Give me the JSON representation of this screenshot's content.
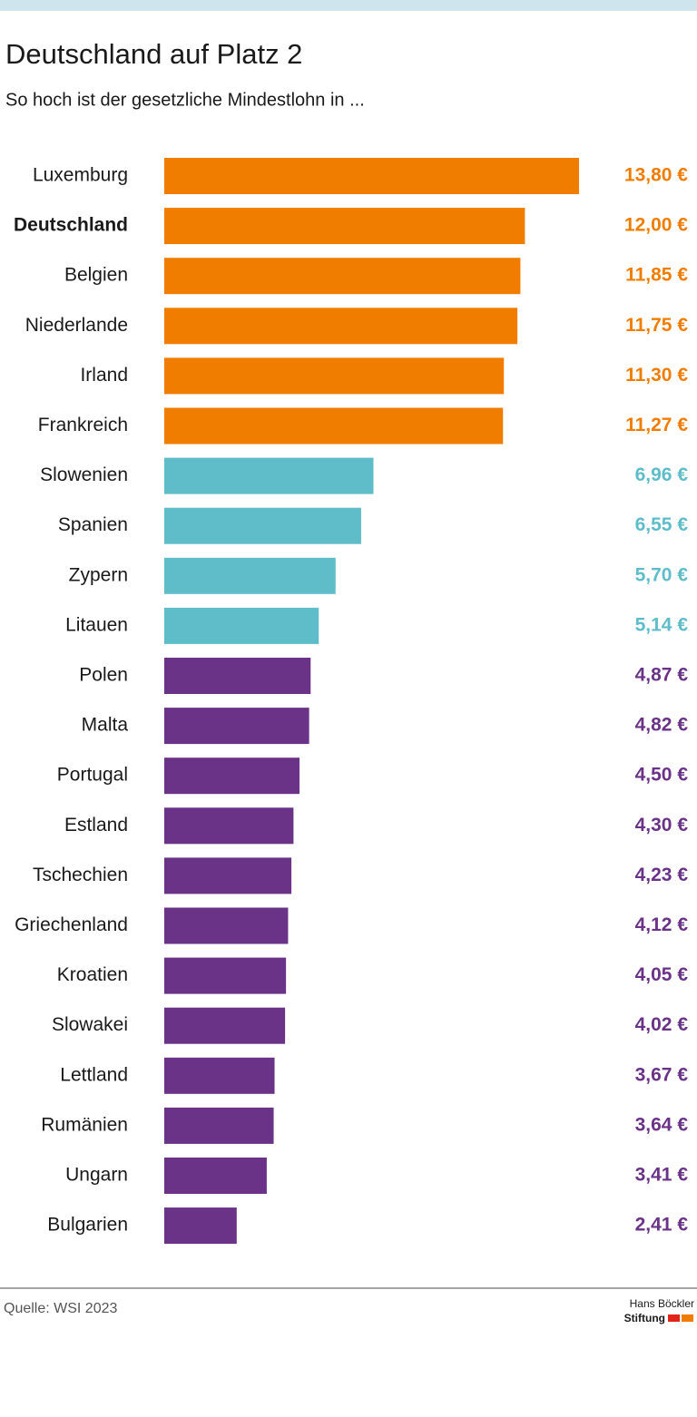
{
  "chart_data": {
    "type": "bar",
    "orientation": "horizontal",
    "title": "Deutschland auf Platz 2",
    "subtitle": "So hoch ist der gesetzliche Mindestlohn in ...",
    "categories": [
      "Luxemburg",
      "Deutschland",
      "Belgien",
      "Niederlande",
      "Irland",
      "Frankreich",
      "Slowenien",
      "Spanien",
      "Zypern",
      "Litauen",
      "Polen",
      "Malta",
      "Portugal",
      "Estland",
      "Tschechien",
      "Griechenland",
      "Kroatien",
      "Slowakei",
      "Lettland",
      "Rumänien",
      "Ungarn",
      "Bulgarien"
    ],
    "values": [
      13.8,
      12.0,
      11.85,
      11.75,
      11.3,
      11.27,
      6.96,
      6.55,
      5.7,
      5.14,
      4.87,
      4.82,
      4.5,
      4.3,
      4.23,
      4.12,
      4.05,
      4.02,
      3.67,
      3.64,
      3.41,
      2.41
    ],
    "value_labels": [
      "13,80 €",
      "12,00 €",
      "11,85 €",
      "11,75 €",
      "11,30 €",
      "11,27 €",
      "6,96 €",
      "6,55 €",
      "5,70 €",
      "5,14 €",
      "4,87 €",
      "4,82 €",
      "4,50 €",
      "4,30 €",
      "4,23 €",
      "4,12 €",
      "4,05 €",
      "4,02 €",
      "3,67 €",
      "3,64 €",
      "3,41 €",
      "2,41 €"
    ],
    "colors": [
      "#f07d00",
      "#f07d00",
      "#f07d00",
      "#f07d00",
      "#f07d00",
      "#f07d00",
      "#5fbdca",
      "#5fbdca",
      "#5fbdca",
      "#5fbdca",
      "#6a3387",
      "#6a3387",
      "#6a3387",
      "#6a3387",
      "#6a3387",
      "#6a3387",
      "#6a3387",
      "#6a3387",
      "#6a3387",
      "#6a3387",
      "#6a3387",
      "#6a3387"
    ],
    "bold_categories": [
      "Deutschland"
    ],
    "source": "Quelle: WSI 2023",
    "logo": {
      "line1": "Hans Böckler",
      "line2": "Stiftung"
    }
  }
}
